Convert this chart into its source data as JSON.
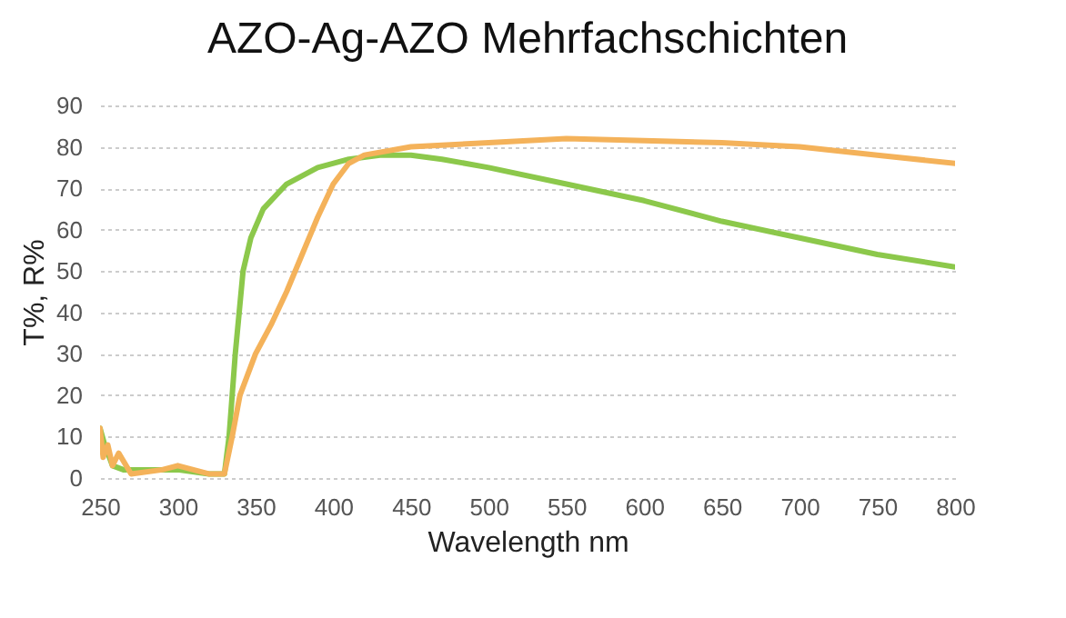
{
  "chart_data": {
    "type": "line",
    "title": "AZO-Ag-AZO Mehrfachschichten",
    "xlabel": "Wavelength nm",
    "ylabel": "T%, R%",
    "xlim": [
      250,
      800
    ],
    "xticks": [
      250,
      300,
      350,
      400,
      450,
      500,
      550,
      600,
      650,
      700,
      750,
      800
    ],
    "ylim": [
      0,
      90
    ],
    "yticks": [
      0,
      10,
      20,
      30,
      40,
      50,
      60,
      70,
      80,
      90
    ],
    "grid": "y",
    "marker": "none",
    "line_style": "solid",
    "series": [
      {
        "color": "#8cc84b",
        "x": [
          250,
          253,
          258,
          265,
          280,
          300,
          320,
          330,
          333,
          337,
          342,
          347,
          355,
          370,
          390,
          410,
          430,
          450,
          470,
          500,
          550,
          600,
          650,
          700,
          750,
          800
        ],
        "values": [
          12,
          8,
          3,
          2,
          2,
          2,
          1,
          1,
          10,
          30,
          50,
          58,
          65,
          71,
          75,
          77,
          78,
          78,
          77,
          75,
          71,
          67,
          62,
          58,
          54,
          51
        ]
      },
      {
        "color": "#f4b25a",
        "x": [
          250,
          252,
          255,
          258,
          262,
          270,
          290,
          300,
          320,
          330,
          335,
          340,
          350,
          360,
          370,
          380,
          390,
          400,
          410,
          420,
          450,
          500,
          550,
          600,
          650,
          700,
          750,
          800
        ],
        "values": [
          12,
          5,
          8,
          3,
          6,
          1,
          2,
          3,
          1,
          1,
          10,
          20,
          30,
          37,
          45,
          54,
          63,
          71,
          76,
          78,
          80,
          81,
          82,
          81.5,
          81,
          80,
          78,
          76
        ]
      }
    ]
  }
}
